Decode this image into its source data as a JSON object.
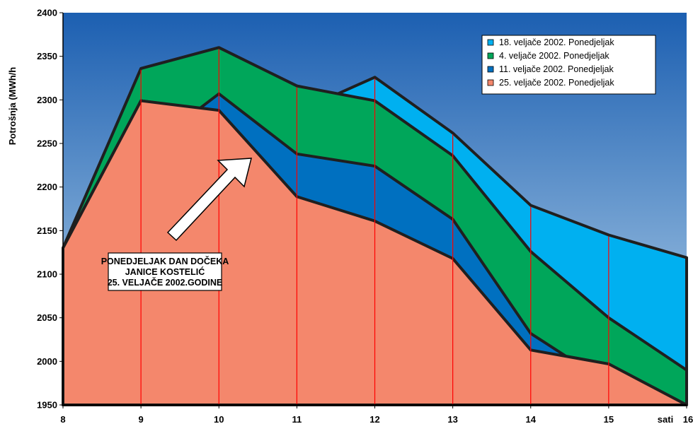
{
  "chart_data": {
    "type": "area",
    "ylabel": "Potrošnja (MWh/h",
    "xlabel": "sati",
    "categories": [
      "8",
      "9",
      "10",
      "11",
      "12",
      "13",
      "14",
      "15",
      "16"
    ],
    "x": [
      8,
      9,
      10,
      11,
      12,
      13,
      14,
      15,
      16
    ],
    "yticks": [
      "1950",
      "2000",
      "2050",
      "2100",
      "2150",
      "2200",
      "2250",
      "2300",
      "2350",
      "2400"
    ],
    "ylim": [
      1950,
      2400
    ],
    "grid": false,
    "legend_position": "top-right",
    "series": [
      {
        "name": "18. veljače 2002. Ponedjeljak",
        "color": "#00b0f0",
        "points": [
          [
            8,
            2130
          ],
          [
            9,
            2336
          ],
          [
            10,
            2360
          ],
          [
            11,
            2316
          ],
          [
            11.5,
            2306
          ],
          [
            12,
            2326
          ],
          [
            13,
            2262
          ],
          [
            14,
            2179
          ],
          [
            15,
            2145
          ],
          [
            16,
            2119
          ]
        ]
      },
      {
        "name": "4. veljače 2002. Ponedjeljak",
        "color": "#00a65a",
        "points": [
          [
            8,
            2130
          ],
          [
            9,
            2336
          ],
          [
            10,
            2360
          ],
          [
            11,
            2316
          ],
          [
            12,
            2299
          ],
          [
            13,
            2236
          ],
          [
            14,
            2126
          ],
          [
            15,
            2050
          ],
          [
            16,
            1990
          ]
        ]
      },
      {
        "name": "11. veljače 2002. Ponedjeljak",
        "color": "#0070c0",
        "points": [
          [
            8,
            2130
          ],
          [
            9,
            2299
          ],
          [
            9.75,
            2290
          ],
          [
            10,
            2307
          ],
          [
            11,
            2238
          ],
          [
            12,
            2224
          ],
          [
            13,
            2163
          ],
          [
            14,
            2032
          ],
          [
            14.45,
            2006
          ],
          [
            15,
            1997
          ],
          [
            16,
            1950
          ]
        ]
      },
      {
        "name": "25. veljače 2002. Ponedjeljak",
        "color": "#f4876c",
        "points": [
          [
            8,
            2130
          ],
          [
            9,
            2299
          ],
          [
            10,
            2288
          ],
          [
            11,
            2189
          ],
          [
            12,
            2161
          ],
          [
            13,
            2118
          ],
          [
            14,
            2013
          ],
          [
            15,
            1997
          ],
          [
            16,
            1950
          ]
        ]
      }
    ],
    "annotation": {
      "lines": [
        "PONEDJELJAK DAN DOČEKA",
        "JANICE KOSTELIĆ",
        "25. VELJAČE 2002.GODINE"
      ]
    }
  },
  "colors": {
    "background_top": "#1c5fb1",
    "background_bottom": "#b8d6ec",
    "outline": "#1f1f1f",
    "drop_lines": "#ff0000"
  }
}
